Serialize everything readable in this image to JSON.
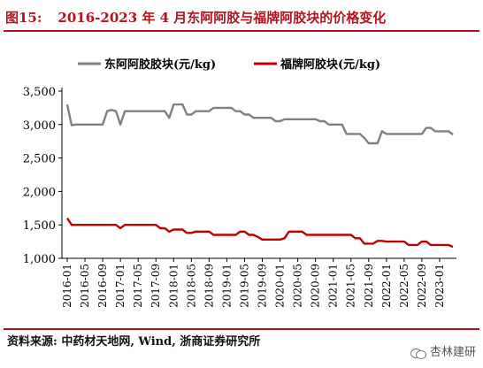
{
  "figure": {
    "number": "图15:",
    "title": "2016-2023 年 4 月东阿阿胶与福牌阿胶块的价格变化"
  },
  "source": "资料来源: 中药材天地网, Wind, 浙商证券研究所",
  "watermark": "杏林建研",
  "chart_data": {
    "type": "line",
    "ylim": [
      1000,
      3500
    ],
    "yticks": [
      1000,
      1500,
      2000,
      2500,
      3000,
      3500
    ],
    "ytick_labels": [
      "1,000",
      "1,500",
      "2,000",
      "2,500",
      "3,000",
      "3,500"
    ],
    "xticks": [
      "2016-01",
      "2016-05",
      "2016-09",
      "2017-01",
      "2017-05",
      "2017-09",
      "2018-01",
      "2018-05",
      "2018-09",
      "2019-01",
      "2019-05",
      "2019-09",
      "2020-01",
      "2020-05",
      "2020-09",
      "2021-01",
      "2021-05",
      "2021-09",
      "2022-01",
      "2022-05",
      "2022-09",
      "2023-01"
    ],
    "legend_position": "top",
    "grid": false,
    "series": [
      {
        "name": "东阿阿胶胶块(元/kg)",
        "color": "#808080",
        "values": [
          [
            "2016-01",
            3300
          ],
          [
            "2016-02",
            2990
          ],
          [
            "2016-03",
            3000
          ],
          [
            "2016-04",
            3000
          ],
          [
            "2016-05",
            3000
          ],
          [
            "2016-06",
            3000
          ],
          [
            "2016-07",
            3000
          ],
          [
            "2016-08",
            3000
          ],
          [
            "2016-09",
            3000
          ],
          [
            "2016-10",
            3200
          ],
          [
            "2016-11",
            3220
          ],
          [
            "2016-12",
            3200
          ],
          [
            "2017-01",
            3000
          ],
          [
            "2017-02",
            3200
          ],
          [
            "2017-03",
            3200
          ],
          [
            "2017-04",
            3200
          ],
          [
            "2017-05",
            3200
          ],
          [
            "2017-06",
            3200
          ],
          [
            "2017-07",
            3200
          ],
          [
            "2017-08",
            3200
          ],
          [
            "2017-09",
            3200
          ],
          [
            "2017-10",
            3200
          ],
          [
            "2017-11",
            3200
          ],
          [
            "2017-12",
            3100
          ],
          [
            "2018-01",
            3300
          ],
          [
            "2018-02",
            3300
          ],
          [
            "2018-03",
            3300
          ],
          [
            "2018-04",
            3150
          ],
          [
            "2018-05",
            3150
          ],
          [
            "2018-06",
            3200
          ],
          [
            "2018-07",
            3200
          ],
          [
            "2018-08",
            3200
          ],
          [
            "2018-09",
            3200
          ],
          [
            "2018-10",
            3250
          ],
          [
            "2018-11",
            3250
          ],
          [
            "2018-12",
            3250
          ],
          [
            "2019-01",
            3250
          ],
          [
            "2019-02",
            3250
          ],
          [
            "2019-03",
            3200
          ],
          [
            "2019-04",
            3200
          ],
          [
            "2019-05",
            3150
          ],
          [
            "2019-06",
            3150
          ],
          [
            "2019-07",
            3100
          ],
          [
            "2019-08",
            3100
          ],
          [
            "2019-09",
            3100
          ],
          [
            "2019-10",
            3100
          ],
          [
            "2019-11",
            3100
          ],
          [
            "2019-12",
            3050
          ],
          [
            "2020-01",
            3050
          ],
          [
            "2020-02",
            3080
          ],
          [
            "2020-03",
            3080
          ],
          [
            "2020-04",
            3080
          ],
          [
            "2020-05",
            3080
          ],
          [
            "2020-06",
            3080
          ],
          [
            "2020-07",
            3080
          ],
          [
            "2020-08",
            3080
          ],
          [
            "2020-09",
            3080
          ],
          [
            "2020-10",
            3050
          ],
          [
            "2020-11",
            3050
          ],
          [
            "2020-12",
            3000
          ],
          [
            "2021-01",
            3000
          ],
          [
            "2021-02",
            3000
          ],
          [
            "2021-03",
            3000
          ],
          [
            "2021-04",
            2860
          ],
          [
            "2021-05",
            2860
          ],
          [
            "2021-06",
            2860
          ],
          [
            "2021-07",
            2860
          ],
          [
            "2021-08",
            2800
          ],
          [
            "2021-09",
            2720
          ],
          [
            "2021-10",
            2720
          ],
          [
            "2021-11",
            2720
          ],
          [
            "2021-12",
            2900
          ],
          [
            "2022-01",
            2860
          ],
          [
            "2022-02",
            2860
          ],
          [
            "2022-03",
            2860
          ],
          [
            "2022-04",
            2860
          ],
          [
            "2022-05",
            2860
          ],
          [
            "2022-06",
            2860
          ],
          [
            "2022-07",
            2860
          ],
          [
            "2022-08",
            2860
          ],
          [
            "2022-09",
            2860
          ],
          [
            "2022-10",
            2950
          ],
          [
            "2022-11",
            2950
          ],
          [
            "2022-12",
            2900
          ],
          [
            "2023-01",
            2900
          ],
          [
            "2023-02",
            2900
          ],
          [
            "2023-03",
            2900
          ],
          [
            "2023-04",
            2850
          ]
        ]
      },
      {
        "name": "福牌阿胶块(元/kg)",
        "color": "#c00000",
        "values": [
          [
            "2016-01",
            1600
          ],
          [
            "2016-02",
            1500
          ],
          [
            "2016-03",
            1500
          ],
          [
            "2016-04",
            1500
          ],
          [
            "2016-05",
            1500
          ],
          [
            "2016-06",
            1500
          ],
          [
            "2016-07",
            1500
          ],
          [
            "2016-08",
            1500
          ],
          [
            "2016-09",
            1500
          ],
          [
            "2016-10",
            1500
          ],
          [
            "2016-11",
            1500
          ],
          [
            "2016-12",
            1500
          ],
          [
            "2017-01",
            1450
          ],
          [
            "2017-02",
            1500
          ],
          [
            "2017-03",
            1500
          ],
          [
            "2017-04",
            1500
          ],
          [
            "2017-05",
            1500
          ],
          [
            "2017-06",
            1500
          ],
          [
            "2017-07",
            1500
          ],
          [
            "2017-08",
            1500
          ],
          [
            "2017-09",
            1500
          ],
          [
            "2017-10",
            1450
          ],
          [
            "2017-11",
            1450
          ],
          [
            "2017-12",
            1400
          ],
          [
            "2018-01",
            1430
          ],
          [
            "2018-02",
            1430
          ],
          [
            "2018-03",
            1430
          ],
          [
            "2018-04",
            1380
          ],
          [
            "2018-05",
            1380
          ],
          [
            "2018-06",
            1400
          ],
          [
            "2018-07",
            1400
          ],
          [
            "2018-08",
            1400
          ],
          [
            "2018-09",
            1400
          ],
          [
            "2018-10",
            1350
          ],
          [
            "2018-11",
            1350
          ],
          [
            "2018-12",
            1350
          ],
          [
            "2019-01",
            1350
          ],
          [
            "2019-02",
            1350
          ],
          [
            "2019-03",
            1350
          ],
          [
            "2019-04",
            1400
          ],
          [
            "2019-05",
            1400
          ],
          [
            "2019-06",
            1350
          ],
          [
            "2019-07",
            1350
          ],
          [
            "2019-08",
            1320
          ],
          [
            "2019-09",
            1280
          ],
          [
            "2019-10",
            1280
          ],
          [
            "2019-11",
            1280
          ],
          [
            "2019-12",
            1280
          ],
          [
            "2020-01",
            1280
          ],
          [
            "2020-02",
            1300
          ],
          [
            "2020-03",
            1400
          ],
          [
            "2020-04",
            1400
          ],
          [
            "2020-05",
            1400
          ],
          [
            "2020-06",
            1400
          ],
          [
            "2020-07",
            1350
          ],
          [
            "2020-08",
            1350
          ],
          [
            "2020-09",
            1350
          ],
          [
            "2020-10",
            1350
          ],
          [
            "2020-11",
            1350
          ],
          [
            "2020-12",
            1350
          ],
          [
            "2021-01",
            1350
          ],
          [
            "2021-02",
            1350
          ],
          [
            "2021-03",
            1350
          ],
          [
            "2021-04",
            1350
          ],
          [
            "2021-05",
            1350
          ],
          [
            "2021-06",
            1300
          ],
          [
            "2021-07",
            1300
          ],
          [
            "2021-08",
            1220
          ],
          [
            "2021-09",
            1220
          ],
          [
            "2021-10",
            1220
          ],
          [
            "2021-11",
            1260
          ],
          [
            "2021-12",
            1260
          ],
          [
            "2022-01",
            1250
          ],
          [
            "2022-02",
            1250
          ],
          [
            "2022-03",
            1250
          ],
          [
            "2022-04",
            1250
          ],
          [
            "2022-05",
            1250
          ],
          [
            "2022-06",
            1200
          ],
          [
            "2022-07",
            1200
          ],
          [
            "2022-08",
            1200
          ],
          [
            "2022-09",
            1250
          ],
          [
            "2022-10",
            1250
          ],
          [
            "2022-11",
            1200
          ],
          [
            "2022-12",
            1200
          ],
          [
            "2023-01",
            1200
          ],
          [
            "2023-02",
            1200
          ],
          [
            "2023-03",
            1200
          ],
          [
            "2023-04",
            1170
          ]
        ]
      }
    ]
  }
}
